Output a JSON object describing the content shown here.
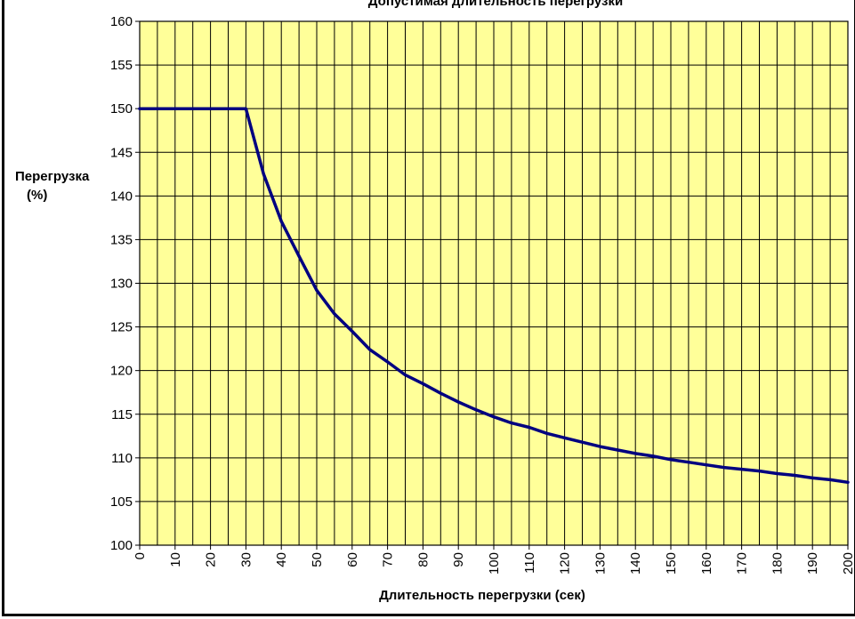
{
  "chart_data": {
    "type": "line",
    "title": "Допустимая длительность перегрузки",
    "xlabel": "Длительность перегрузки (сек)",
    "ylabel_line1": "Перегрузка",
    "ylabel_line2": "(%)",
    "xlim": [
      0,
      200
    ],
    "ylim": [
      100,
      160
    ],
    "x_ticks": [
      0,
      10,
      20,
      30,
      40,
      50,
      60,
      70,
      80,
      90,
      100,
      110,
      120,
      130,
      140,
      150,
      160,
      170,
      180,
      190,
      200
    ],
    "y_ticks": [
      100,
      105,
      110,
      115,
      120,
      125,
      130,
      135,
      140,
      145,
      150,
      155,
      160
    ],
    "x_minor_step": 5,
    "y_step": 5,
    "grid": true,
    "colors": {
      "plot_background": "#ffff99",
      "grid": "#000000",
      "line": "#000080",
      "frame": "#000000"
    },
    "series": [
      {
        "x": [
          0,
          5,
          10,
          15,
          20,
          25,
          30,
          35,
          40,
          45,
          50,
          55,
          60,
          65,
          70,
          75,
          80,
          85,
          90,
          95,
          100,
          105,
          110,
          115,
          120,
          125,
          130,
          135,
          140,
          145,
          150,
          155,
          160,
          165,
          170,
          175,
          180,
          185,
          190,
          195,
          200
        ],
        "values": [
          150,
          150,
          150,
          150,
          150,
          150,
          150,
          142.5,
          137.1,
          133.1,
          129.2,
          126.5,
          124.5,
          122.4,
          121,
          119.5,
          118.5,
          117.4,
          116.4,
          115.5,
          114.7,
          114,
          113.5,
          112.8,
          112.3,
          111.8,
          111.3,
          110.9,
          110.5,
          110.2,
          109.8,
          109.5,
          109.2,
          108.9,
          108.7,
          108.5,
          108.2,
          108,
          107.7,
          107.5,
          107.2
        ]
      }
    ]
  }
}
